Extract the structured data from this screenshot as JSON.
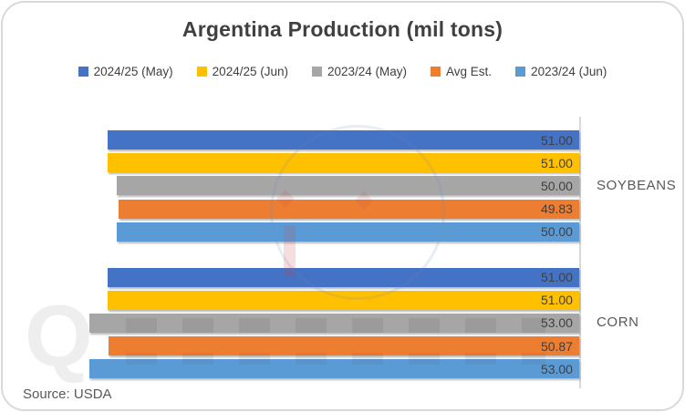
{
  "chart_data": {
    "type": "bar",
    "orientation": "horizontal-right-anchored",
    "title": "Argentina Production (mil tons)",
    "categories": [
      "SOYBEANS",
      "CORN"
    ],
    "series": [
      {
        "name": "2024/25 (May)",
        "color": "#4472C4",
        "values": [
          51.0,
          51.0
        ]
      },
      {
        "name": "2024/25 (Jun)",
        "color": "#FFC000",
        "values": [
          51.0,
          51.0
        ]
      },
      {
        "name": "2023/24 (May)",
        "color": "#A6A6A6",
        "values": [
          50.0,
          53.0
        ]
      },
      {
        "name": "Avg Est.",
        "color": "#ED7D31",
        "values": [
          49.83,
          50.87
        ]
      },
      {
        "name": "2023/24 (Jun)",
        "color": "#5B9BD5",
        "values": [
          50.0,
          53.0
        ]
      }
    ],
    "value_label_decimals": 2,
    "legend_position": "top",
    "grid": false,
    "category_axis_side": "right",
    "axis_line_color": "#d9d9d9",
    "value_axis_min": 0
  },
  "source_note": "Source: USDA",
  "watermark": {
    "visible_letter": "Q"
  },
  "colors": {
    "title_text": "#404040",
    "value_label_text": "#404040",
    "category_label_text": "#595959",
    "card_border": "#d9d9d9"
  }
}
